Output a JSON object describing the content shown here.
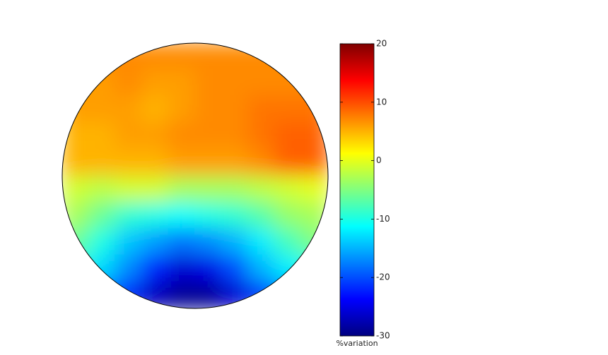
{
  "chart_data": {
    "type": "contour",
    "colormap": "jet",
    "z": [
      [
        7,
        7,
        7,
        7,
        7,
        7,
        7,
        7,
        7,
        7
      ],
      [
        6,
        6,
        7,
        6,
        6,
        7,
        7,
        7,
        7,
        7
      ],
      [
        6,
        6,
        6,
        5,
        6,
        7,
        7,
        8,
        8,
        8
      ],
      [
        5,
        5,
        6,
        6,
        7,
        7,
        7,
        8,
        9,
        9
      ],
      [
        5,
        5,
        5,
        5,
        6,
        6,
        6,
        7,
        9,
        9
      ],
      [
        -1,
        -2,
        -1,
        -1,
        -3,
        -3,
        -3,
        -2,
        -1,
        0
      ],
      [
        -3,
        -6,
        -9,
        -10,
        -11,
        -10,
        -9,
        -7,
        -4,
        -3
      ],
      [
        -6,
        -10,
        -14,
        -16,
        -18,
        -17,
        -15,
        -12,
        -8,
        -5
      ],
      [
        -10,
        -13,
        -17,
        -22,
        -26,
        -25,
        -20,
        -15,
        -12,
        -10
      ],
      [
        -15,
        -18,
        -22,
        -27,
        -29,
        -29,
        -26,
        -21,
        -17,
        -15
      ]
    ],
    "clim": [
      -30,
      20
    ],
    "cticks": [
      -30,
      -20,
      -10,
      0,
      10,
      20
    ],
    "colorbar_label": "%variation"
  }
}
